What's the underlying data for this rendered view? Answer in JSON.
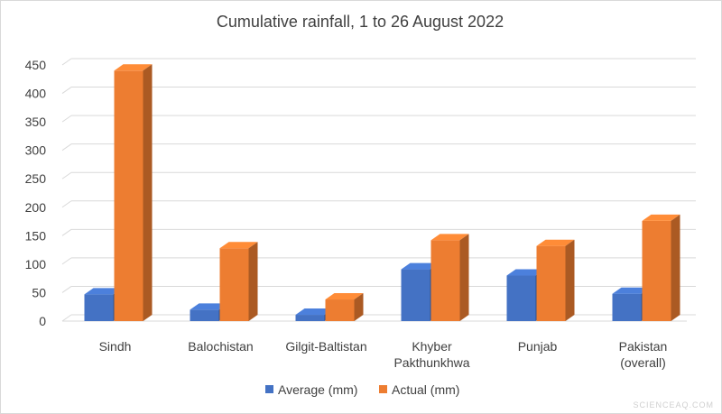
{
  "chart_data": {
    "type": "bar",
    "title": "Cumulative rainfall, 1 to 26 August 2022",
    "categories": [
      [
        "Sindh"
      ],
      [
        "Balochistan"
      ],
      [
        "Gilgit-Baltistan"
      ],
      [
        "Khyber",
        "Pakthunkhwa"
      ],
      [
        "Punjab"
      ],
      [
        "Pakistan",
        "(overall)"
      ]
    ],
    "series": [
      {
        "name": "Average (mm)",
        "values": [
          47,
          20,
          11,
          91,
          80,
          48
        ],
        "color": "#4472c4"
      },
      {
        "name": "Actual (mm)",
        "values": [
          440,
          128,
          38,
          142,
          132,
          176
        ],
        "color": "#ed7d31"
      }
    ],
    "ylim": [
      0,
      450
    ],
    "yticks": [
      0,
      50,
      100,
      150,
      200,
      250,
      300,
      350,
      400,
      450
    ],
    "grid": true,
    "legend": "bottom",
    "style": "3d-clustered-column"
  },
  "watermark": "SCIENCEAQ.COM"
}
